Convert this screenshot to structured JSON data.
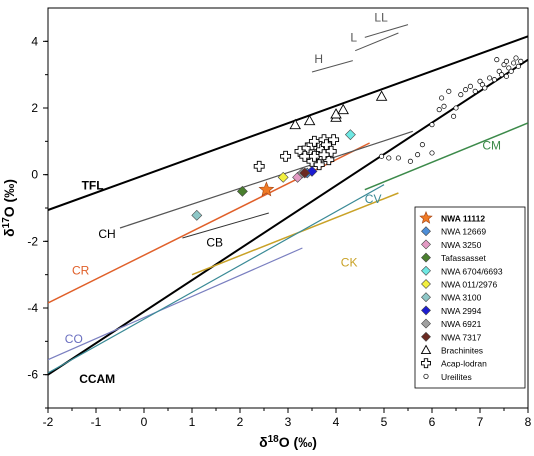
{
  "chart_data": {
    "type": "scatter",
    "xlabel": "δ18O (‰)",
    "ylabel": "δ17O (‰)",
    "xlim": [
      -2,
      8
    ],
    "ylim": [
      -7,
      5
    ],
    "x_ticks": [
      "-2",
      "-1",
      "0",
      "1",
      "2",
      "3",
      "4",
      "5",
      "6",
      "7",
      "8"
    ],
    "y_ticks": [
      "4",
      "2",
      "0",
      "-2",
      "-4",
      "-6"
    ],
    "grid": false,
    "legend_position": "bottom-right",
    "reference_lines": [
      {
        "name": "TFL",
        "color": "#000000",
        "width": 2,
        "points": [
          [
            -2,
            -1.06
          ],
          [
            8,
            4.15
          ]
        ]
      },
      {
        "name": "CCAM",
        "color": "#000000",
        "width": 2,
        "points": [
          [
            -2,
            -6.0
          ],
          [
            8,
            3.45
          ]
        ]
      },
      {
        "name": "CR",
        "color": "#e0602a",
        "width": 1.5,
        "points": [
          [
            -2,
            -3.85
          ],
          [
            4.7,
            0.95
          ]
        ]
      },
      {
        "name": "CO",
        "color": "#7a7fc0",
        "width": 1.2,
        "points": [
          [
            -2,
            -5.55
          ],
          [
            3.3,
            -2.2
          ]
        ]
      },
      {
        "name": "CK",
        "color": "#c9a227",
        "width": 1.5,
        "points": [
          [
            1.0,
            -3.0
          ],
          [
            5.3,
            -0.55
          ]
        ]
      },
      {
        "name": "CV",
        "color": "#3a8a96",
        "width": 1.2,
        "points": [
          [
            -2,
            -5.95
          ],
          [
            5.0,
            -0.3
          ]
        ]
      },
      {
        "name": "CM",
        "color": "#3c8a4a",
        "width": 1.5,
        "points": [
          [
            4.6,
            -0.45
          ],
          [
            8,
            1.55
          ]
        ]
      },
      {
        "name": "CH",
        "color": "#555555",
        "width": 1.2,
        "points": [
          [
            -0.5,
            -1.6
          ],
          [
            5.6,
            1.3
          ]
        ]
      },
      {
        "name": "CB",
        "color": "#333333",
        "width": 1.0,
        "points": [
          [
            0.8,
            -1.9
          ],
          [
            2.6,
            -1.15
          ]
        ]
      },
      {
        "name": "H",
        "color": "#555555",
        "width": 1.0,
        "points": [
          [
            3.5,
            3.08
          ],
          [
            4.35,
            3.42
          ]
        ]
      },
      {
        "name": "L",
        "color": "#555555",
        "width": 1.0,
        "points": [
          [
            4.4,
            3.72
          ],
          [
            5.3,
            4.25
          ]
        ]
      },
      {
        "name": "LL",
        "color": "#555555",
        "width": 1.0,
        "points": [
          [
            4.6,
            4.12
          ],
          [
            5.5,
            4.5
          ]
        ]
      }
    ],
    "line_labels": [
      {
        "text": "TFL",
        "x": -1.3,
        "y": -0.45,
        "color": "#000000",
        "bold": true
      },
      {
        "text": "CCAM",
        "x": -1.35,
        "y": -6.25,
        "color": "#000000",
        "bold": true
      },
      {
        "text": "CR",
        "x": -1.5,
        "y": -3.0,
        "color": "#e0602a",
        "bold": false
      },
      {
        "text": "CO",
        "x": -1.65,
        "y": -5.05,
        "color": "#6a6fc0",
        "bold": false
      },
      {
        "text": "CK",
        "x": 4.1,
        "y": -2.75,
        "color": "#c9a227",
        "bold": false
      },
      {
        "text": "CV",
        "x": 4.6,
        "y": -0.85,
        "color": "#3a8a96",
        "bold": false
      },
      {
        "text": "CM",
        "x": 7.05,
        "y": 0.75,
        "color": "#3c8a4a",
        "bold": false
      },
      {
        "text": "CH",
        "x": -0.95,
        "y": -1.9,
        "color": "#000000",
        "bold": false
      },
      {
        "text": "CB",
        "x": 1.3,
        "y": -2.15,
        "color": "#000000",
        "bold": false
      },
      {
        "text": "H",
        "x": 3.55,
        "y": 3.35,
        "color": "#555555",
        "bold": false
      },
      {
        "text": "L",
        "x": 4.3,
        "y": 4.0,
        "color": "#555555",
        "bold": false
      },
      {
        "text": "LL",
        "x": 4.8,
        "y": 4.6,
        "color": "#555555",
        "bold": false
      }
    ],
    "series": [
      {
        "name": "NWA 11112",
        "marker": "star",
        "color": "#f07a25",
        "points": [
          [
            2.55,
            -0.45
          ]
        ]
      },
      {
        "name": "NWA 12669",
        "marker": "diamond",
        "color": "#4d8ed8",
        "points": [
          [
            3.4,
            0.05
          ]
        ]
      },
      {
        "name": "NWA 3250",
        "marker": "diamond",
        "color": "#e39ac4",
        "points": [
          [
            3.2,
            -0.08
          ]
        ]
      },
      {
        "name": "Tafassasset",
        "marker": "diamond",
        "color": "#4a7f2e",
        "points": [
          [
            2.05,
            -0.5
          ]
        ]
      },
      {
        "name": "NWA 6704/6693",
        "marker": "diamond",
        "color": "#6fe8e3",
        "points": [
          [
            4.3,
            1.2
          ]
        ]
      },
      {
        "name": "NWA 011/2976",
        "marker": "diamond",
        "color": "#f3f040",
        "points": [
          [
            2.9,
            -0.08
          ]
        ]
      },
      {
        "name": "NWA 3100",
        "marker": "diamond",
        "color": "#8ec7c7",
        "points": [
          [
            1.1,
            -1.22
          ]
        ]
      },
      {
        "name": "NWA 2994",
        "marker": "diamond",
        "color": "#1c1cd1",
        "points": [
          [
            3.5,
            0.1
          ]
        ]
      },
      {
        "name": "NWA 6921",
        "marker": "diamond",
        "color": "#a0a0a0",
        "points": [
          [
            3.3,
            0.05
          ]
        ]
      },
      {
        "name": "NWA 7317",
        "marker": "diamond",
        "color": "#6b2a22",
        "points": [
          [
            3.35,
            0.05
          ]
        ]
      },
      {
        "name": "Brachinites",
        "marker": "triangle",
        "color": "#000000",
        "points": [
          [
            3.15,
            1.5
          ],
          [
            3.45,
            1.62
          ],
          [
            4.0,
            1.72
          ],
          [
            4.0,
            1.82
          ],
          [
            4.15,
            1.95
          ],
          [
            4.95,
            2.35
          ]
        ]
      },
      {
        "name": "Acap-lodran",
        "marker": "cross",
        "color": "#000000",
        "points": [
          [
            2.4,
            0.25
          ],
          [
            2.95,
            0.55
          ],
          [
            3.25,
            0.7
          ],
          [
            3.4,
            0.8
          ],
          [
            3.5,
            0.9
          ],
          [
            3.55,
            1.0
          ],
          [
            3.6,
            0.6
          ],
          [
            3.7,
            0.75
          ],
          [
            3.75,
            1.05
          ],
          [
            3.8,
            0.9
          ],
          [
            3.85,
            0.45
          ],
          [
            3.9,
            0.7
          ],
          [
            3.5,
            0.4
          ],
          [
            3.35,
            0.55
          ],
          [
            3.65,
            0.3
          ],
          [
            3.95,
            1.05
          ],
          [
            3.55,
            0.55
          ],
          [
            3.75,
            0.6
          ]
        ]
      },
      {
        "name": "Ureilites",
        "marker": "circle",
        "color": "#000000",
        "points": [
          [
            4.95,
            0.55
          ],
          [
            5.1,
            0.5
          ],
          [
            5.3,
            0.5
          ],
          [
            5.55,
            0.4
          ],
          [
            5.7,
            0.6
          ],
          [
            5.8,
            0.9
          ],
          [
            6.0,
            1.5
          ],
          [
            6.0,
            0.65
          ],
          [
            6.2,
            2.3
          ],
          [
            6.25,
            2.05
          ],
          [
            6.35,
            2.5
          ],
          [
            6.5,
            2.0
          ],
          [
            6.6,
            2.4
          ],
          [
            6.7,
            2.55
          ],
          [
            6.8,
            2.65
          ],
          [
            6.9,
            2.5
          ],
          [
            7.0,
            2.8
          ],
          [
            7.05,
            2.7
          ],
          [
            7.1,
            2.6
          ],
          [
            7.2,
            2.9
          ],
          [
            7.3,
            2.85
          ],
          [
            7.4,
            3.1
          ],
          [
            7.45,
            3.0
          ],
          [
            7.5,
            3.3
          ],
          [
            7.55,
            3.4
          ],
          [
            7.6,
            3.2
          ],
          [
            7.65,
            3.1
          ],
          [
            7.7,
            3.35
          ],
          [
            7.75,
            3.5
          ],
          [
            7.8,
            3.25
          ],
          [
            7.55,
            2.95
          ],
          [
            7.35,
            3.45
          ],
          [
            7.85,
            3.4
          ],
          [
            6.45,
            1.75
          ],
          [
            6.15,
            1.95
          ]
        ]
      }
    ]
  }
}
